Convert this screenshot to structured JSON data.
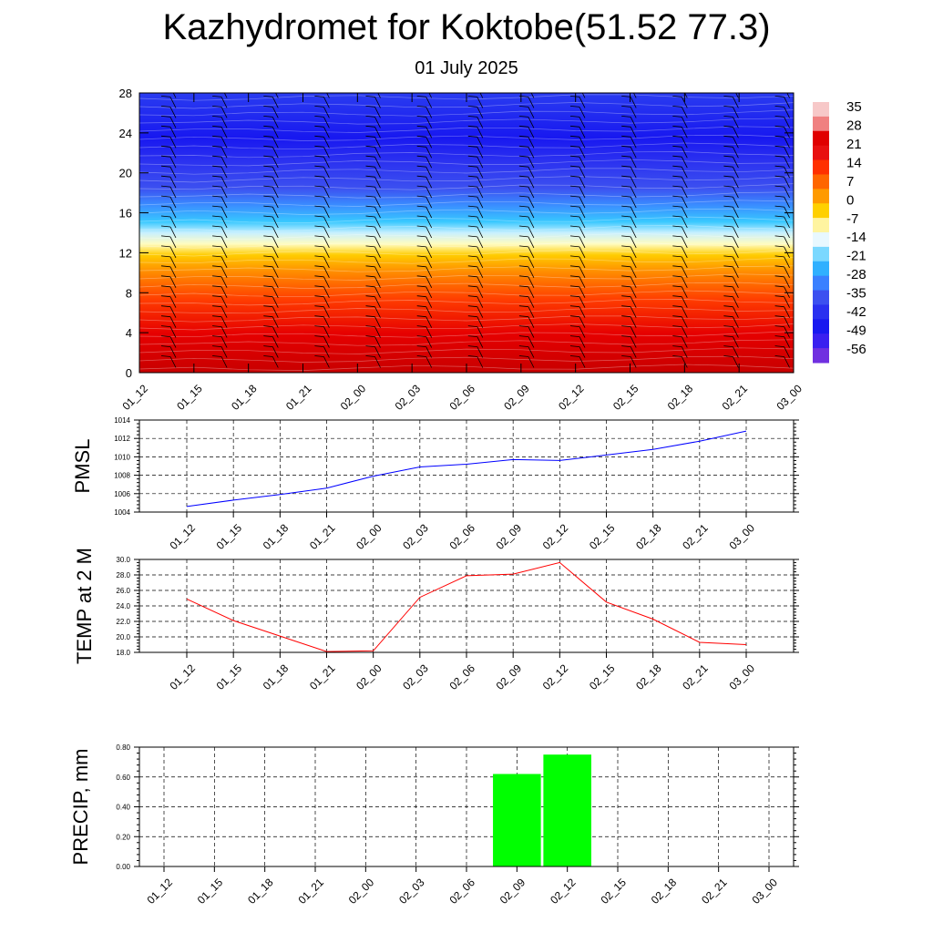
{
  "header": {
    "title": "Kazhydromet for Koktobe(51.52 77.3)",
    "subtitle": "01 July 2025"
  },
  "time_labels": [
    "01_12",
    "01_15",
    "01_18",
    "01_21",
    "02_00",
    "02_03",
    "02_06",
    "02_09",
    "02_12",
    "02_15",
    "02_18",
    "02_21",
    "03_00"
  ],
  "chart_data": [
    {
      "type": "heatmap",
      "title": "",
      "ylim": [
        0,
        28
      ],
      "yticks": [
        "0",
        "4",
        "8",
        "12",
        "16",
        "20",
        "24",
        "28"
      ],
      "x": [
        "01_12",
        "01_15",
        "01_18",
        "01_21",
        "02_00",
        "02_03",
        "02_06",
        "02_09",
        "02_12",
        "02_15",
        "02_18",
        "02_21",
        "03_00"
      ],
      "z_description_levels": [
        0,
        28
      ],
      "colorbar_labels": [
        "35",
        "28",
        "21",
        "14",
        "7",
        "0",
        "-7",
        "-14",
        "-21",
        "-28",
        "-35",
        "-42",
        "-49",
        "-56"
      ],
      "colors": {
        "warm": "#d40000",
        "orange": "#ff9a00",
        "yellow": "#fff9a8",
        "cyan": "#2ec4ff",
        "blue": "#2a3cf0",
        "deep": "#1010f0"
      },
      "overlay": "wind barbs"
    },
    {
      "type": "line",
      "ylabel": "PMSL",
      "ylim": [
        1004,
        1014
      ],
      "yticks": [
        "1004",
        "1006",
        "1008",
        "1010",
        "1012",
        "1014"
      ],
      "x": [
        "01_12",
        "01_15",
        "01_18",
        "01_21",
        "02_00",
        "02_03",
        "02_06",
        "02_09",
        "02_12",
        "02_15",
        "02_18",
        "02_21",
        "03_00"
      ],
      "series": [
        {
          "values": [
            1004.6,
            1005.3,
            1005.9,
            1006.6,
            1007.9,
            1008.9,
            1009.2,
            1009.7,
            1009.6,
            1010.2,
            1010.8,
            1011.7,
            1012.8
          ],
          "color": "#0000ff"
        }
      ],
      "grid": true
    },
    {
      "type": "line",
      "ylabel": "TEMP at 2 M",
      "ylim": [
        18,
        30
      ],
      "yticks": [
        "18.0",
        "20.0",
        "22.0",
        "24.0",
        "26.0",
        "28.0",
        "30.0"
      ],
      "x": [
        "01_12",
        "01_15",
        "01_18",
        "01_21",
        "02_00",
        "02_03",
        "02_06",
        "02_09",
        "02_12",
        "02_15",
        "02_18",
        "02_21",
        "03_00"
      ],
      "series": [
        {
          "values": [
            24.9,
            22.1,
            20.1,
            18.1,
            18.2,
            25.1,
            27.9,
            28.1,
            29.6,
            24.5,
            22.3,
            19.3,
            19.0
          ],
          "color": "#ff0000"
        }
      ],
      "grid": true
    },
    {
      "type": "bar",
      "ylabel": "PRECIP, mm",
      "ylim": [
        0,
        0.8
      ],
      "yticks": [
        "0.00",
        "0.20",
        "0.40",
        "0.60",
        "0.80"
      ],
      "categories": [
        "01_12",
        "01_15",
        "01_18",
        "01_21",
        "02_00",
        "02_03",
        "02_06",
        "02_09",
        "02_12",
        "02_15",
        "02_18",
        "02_21",
        "03_00"
      ],
      "values": [
        0,
        0,
        0,
        0,
        0,
        0,
        0,
        0.62,
        0.75,
        0,
        0,
        0,
        0
      ],
      "color": "#00ff00",
      "grid": true
    }
  ]
}
